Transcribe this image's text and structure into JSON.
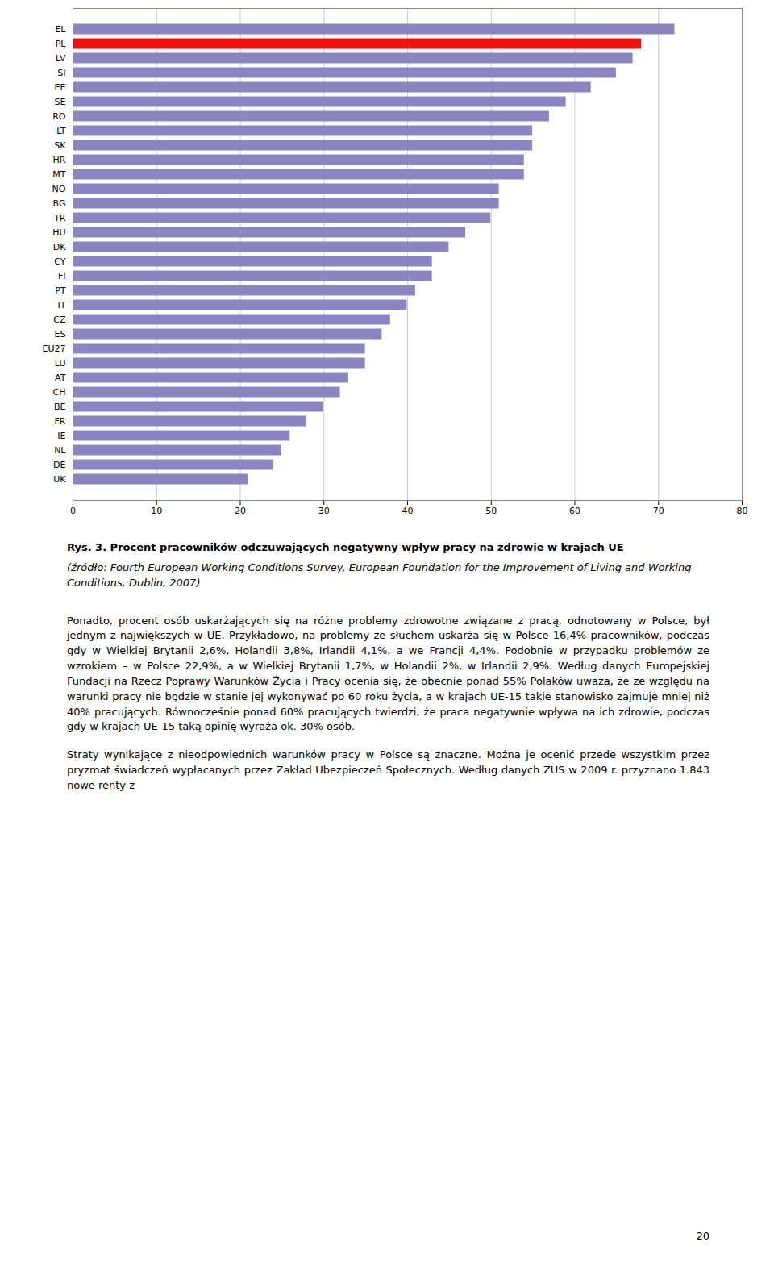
{
  "chart_data": {
    "type": "bar",
    "orientation": "horizontal",
    "title": "Rys. 3. Procent pracowników odczuwających negatywny wpływ pracy na zdrowie w krajach UE",
    "annotations": [
      "(źródło: Fourth European Working Conditions Survey, European Foundation for the Improvement of Living and Working Conditions, Dublin, 2007)",
      "Ponadto, procent osób uskarżających się na różne problemy zdrowotne związane z pracą, odnotowany w Polsce, był jednym z największych w UE. Przykładowo, na problemy ze słuchem uskarża się w Polsce 16,4% pracowników, podczas gdy w Wielkiej Brytanii 2,6%, Holandii 3,8%, Irlandii 4,1%, a we Francji 4,4%. Podobnie w przypadku problemów ze wzrokiem – w Polsce 22,9%, a w Wielkiej Brytanii 1,7%, w Holandii 2%, w Irlandii 2,9%. Według danych Europejskiej Fundacji na Rzecz Poprawy Warunków Życia i Pracy ocenia się, że obecnie ponad 55% Polaków uważa, że ze względu na warunki pracy nie będzie w stanie jej wykonywać po 60 roku życia, a w krajach UE-15 takie stanowisko zajmuje mniej niż 40% pracujących. Równocześnie ponad 60% pracujących twierdzi, że praca negatywnie wpływa na ich zdrowie, podczas gdy w krajach UE-15 taką opinię wyraża ok. 30% osób.",
      "Straty wynikające z nieodpowiednich warunków pracy w Polsce są znaczne. Można je ocenić przede wszystkim przez pryzmat świadczeń wypłacanych przez Zakład Ubezpieczeń Społecznych. Według danych ZUS w 2009 r. przyznano 1.843 nowe renty z",
      "20"
    ],
    "categories": [
      "EL",
      "PL",
      "LV",
      "SI",
      "EE",
      "SE",
      "RO",
      "LT",
      "SK",
      "HR",
      "MT",
      "NO",
      "BG",
      "TR",
      "HU",
      "DK",
      "CY",
      "FI",
      "PT",
      "IT",
      "CZ",
      "ES",
      "EU27",
      "LU",
      "AT",
      "CH",
      "BE",
      "FR",
      "IE",
      "NL",
      "DE",
      "UK"
    ],
    "values": [
      72,
      68,
      67,
      65,
      62,
      59,
      57,
      55,
      55,
      54,
      54,
      51,
      51,
      50,
      47,
      45,
      43,
      43,
      41,
      40,
      38,
      37,
      35,
      35,
      33,
      32,
      30,
      28,
      26,
      25,
      24,
      21
    ],
    "colors": [
      "#8B85C1",
      "#EE1111",
      "#8B85C1",
      "#8B85C1",
      "#8B85C1",
      "#8B85C1",
      "#8B85C1",
      "#8B85C1",
      "#8B85C1",
      "#8B85C1",
      "#8B85C1",
      "#8B85C1",
      "#8B85C1",
      "#8B85C1",
      "#8B85C1",
      "#8B85C1",
      "#8B85C1",
      "#8B85C1",
      "#8B85C1",
      "#8B85C1",
      "#8B85C1",
      "#8B85C1",
      "#8B85C1",
      "#8B85C1",
      "#8B85C1",
      "#8B85C1",
      "#8B85C1",
      "#8B85C1",
      "#8B85C1",
      "#8B85C1",
      "#8B85C1",
      "#8B85C1"
    ],
    "xlim": [
      0,
      80
    ],
    "xticks": [
      0,
      10,
      20,
      30,
      40,
      50,
      60,
      70,
      80
    ],
    "grid": true
  }
}
